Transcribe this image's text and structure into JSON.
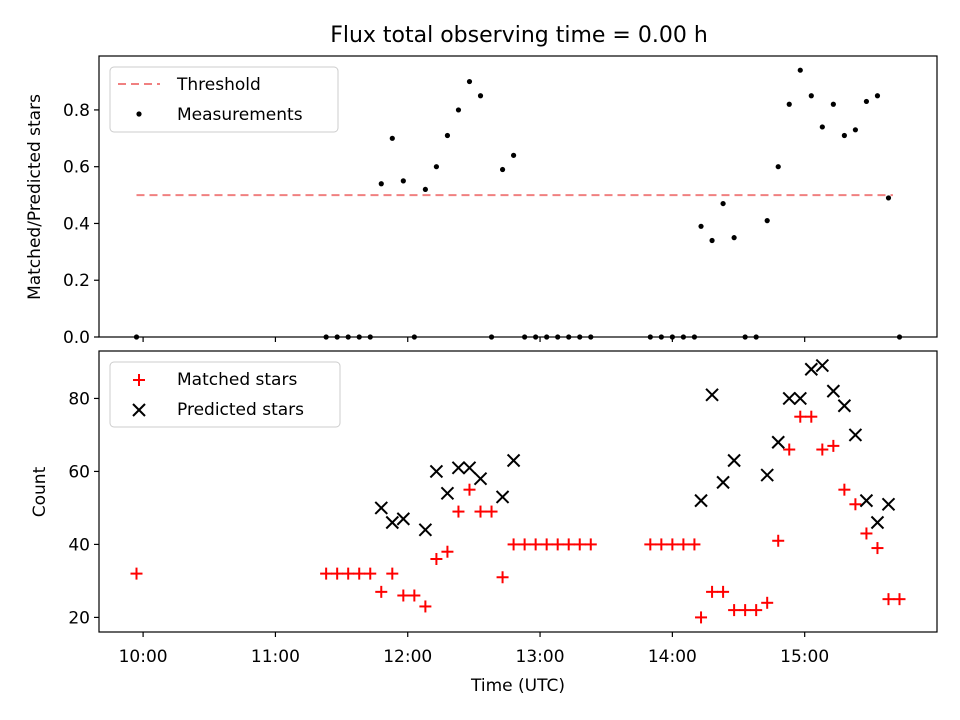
{
  "figure": {
    "title": "Flux total observing time = 0.00 h",
    "xlabel": "Time (UTC)",
    "xticks": [
      "10:00",
      "11:00",
      "12:00",
      "13:00",
      "14:00",
      "15:00"
    ]
  },
  "chart_data": [
    {
      "type": "scatter",
      "title": "Flux total observing time = 0.00 h",
      "xlabel": "",
      "ylabel": "Matched/Predicted stars",
      "xlim": [
        "09:40",
        "16:00"
      ],
      "ylim": [
        0,
        0.99
      ],
      "yticks": [
        0.0,
        0.2,
        0.4,
        0.6,
        0.8
      ],
      "grid": false,
      "legend": "top-left",
      "threshold": {
        "name": "Threshold",
        "y": 0.5,
        "x": [
          "09:57",
          "15:40"
        ],
        "color": "#f08080",
        "style": "dashed"
      },
      "series": [
        {
          "name": "Measurements",
          "color": "#000000",
          "marker": "dot",
          "points": [
            [
              "09:57",
              0.0
            ],
            [
              "11:23",
              0.0
            ],
            [
              "11:28",
              0.0
            ],
            [
              "11:33",
              0.0
            ],
            [
              "11:38",
              0.0
            ],
            [
              "11:43",
              0.0
            ],
            [
              "11:48",
              0.54
            ],
            [
              "11:53",
              0.7
            ],
            [
              "11:58",
              0.55
            ],
            [
              "12:03",
              0.0
            ],
            [
              "12:08",
              0.52
            ],
            [
              "12:13",
              0.6
            ],
            [
              "12:18",
              0.71
            ],
            [
              "12:23",
              0.8
            ],
            [
              "12:28",
              0.9
            ],
            [
              "12:33",
              0.85
            ],
            [
              "12:38",
              0.0
            ],
            [
              "12:43",
              0.59
            ],
            [
              "12:48",
              0.64
            ],
            [
              "12:53",
              0.0
            ],
            [
              "12:58",
              0.0
            ],
            [
              "13:03",
              0.0
            ],
            [
              "13:08",
              0.0
            ],
            [
              "13:13",
              0.0
            ],
            [
              "13:18",
              0.0
            ],
            [
              "13:23",
              0.0
            ],
            [
              "13:50",
              0.0
            ],
            [
              "13:55",
              0.0
            ],
            [
              "14:00",
              0.0
            ],
            [
              "14:05",
              0.0
            ],
            [
              "14:10",
              0.0
            ],
            [
              "14:13",
              0.39
            ],
            [
              "14:18",
              0.34
            ],
            [
              "14:23",
              0.47
            ],
            [
              "14:28",
              0.35
            ],
            [
              "14:33",
              0.0
            ],
            [
              "14:38",
              0.0
            ],
            [
              "14:43",
              0.41
            ],
            [
              "14:48",
              0.6
            ],
            [
              "14:53",
              0.82
            ],
            [
              "14:58",
              0.94
            ],
            [
              "15:03",
              0.85
            ],
            [
              "15:08",
              0.74
            ],
            [
              "15:13",
              0.82
            ],
            [
              "15:18",
              0.71
            ],
            [
              "15:23",
              0.73
            ],
            [
              "15:28",
              0.83
            ],
            [
              "15:33",
              0.85
            ],
            [
              "15:38",
              0.49
            ],
            [
              "15:43",
              0.0
            ]
          ]
        }
      ]
    },
    {
      "type": "scatter",
      "title": "",
      "xlabel": "Time (UTC)",
      "ylabel": "Count",
      "xlim": [
        "09:40",
        "16:00"
      ],
      "ylim": [
        16,
        93
      ],
      "yticks": [
        20,
        40,
        60,
        80
      ],
      "grid": false,
      "legend": "top-left",
      "series": [
        {
          "name": "Matched stars",
          "color": "#ff0000",
          "marker": "plus",
          "points": [
            [
              "09:57",
              32
            ],
            [
              "11:23",
              32
            ],
            [
              "11:28",
              32
            ],
            [
              "11:33",
              32
            ],
            [
              "11:38",
              32
            ],
            [
              "11:43",
              32
            ],
            [
              "11:48",
              27
            ],
            [
              "11:53",
              32
            ],
            [
              "11:58",
              26
            ],
            [
              "12:03",
              26
            ],
            [
              "12:08",
              23
            ],
            [
              "12:13",
              36
            ],
            [
              "12:18",
              38
            ],
            [
              "12:23",
              49
            ],
            [
              "12:28",
              55
            ],
            [
              "12:33",
              49
            ],
            [
              "12:38",
              49
            ],
            [
              "12:43",
              31
            ],
            [
              "12:48",
              40
            ],
            [
              "12:53",
              40
            ],
            [
              "12:58",
              40
            ],
            [
              "13:03",
              40
            ],
            [
              "13:08",
              40
            ],
            [
              "13:13",
              40
            ],
            [
              "13:18",
              40
            ],
            [
              "13:23",
              40
            ],
            [
              "13:50",
              40
            ],
            [
              "13:55",
              40
            ],
            [
              "14:00",
              40
            ],
            [
              "14:05",
              40
            ],
            [
              "14:10",
              40
            ],
            [
              "14:13",
              20
            ],
            [
              "14:18",
              27
            ],
            [
              "14:23",
              27
            ],
            [
              "14:28",
              22
            ],
            [
              "14:33",
              22
            ],
            [
              "14:38",
              22
            ],
            [
              "14:43",
              24
            ],
            [
              "14:48",
              41
            ],
            [
              "14:53",
              66
            ],
            [
              "14:58",
              75
            ],
            [
              "15:03",
              75
            ],
            [
              "15:08",
              66
            ],
            [
              "15:13",
              67
            ],
            [
              "15:18",
              55
            ],
            [
              "15:23",
              51
            ],
            [
              "15:28",
              43
            ],
            [
              "15:33",
              39
            ],
            [
              "15:38",
              25
            ],
            [
              "15:43",
              25
            ]
          ]
        },
        {
          "name": "Predicted stars",
          "color": "#000000",
          "marker": "x",
          "points": [
            [
              "11:48",
              50
            ],
            [
              "11:53",
              46
            ],
            [
              "11:58",
              47
            ],
            [
              "12:08",
              44
            ],
            [
              "12:13",
              60
            ],
            [
              "12:18",
              54
            ],
            [
              "12:23",
              61
            ],
            [
              "12:28",
              61
            ],
            [
              "12:33",
              58
            ],
            [
              "12:43",
              53
            ],
            [
              "12:48",
              63
            ],
            [
              "14:13",
              52
            ],
            [
              "14:18",
              81
            ],
            [
              "14:23",
              57
            ],
            [
              "14:28",
              63
            ],
            [
              "14:43",
              59
            ],
            [
              "14:48",
              68
            ],
            [
              "14:53",
              80
            ],
            [
              "14:58",
              80
            ],
            [
              "15:03",
              88
            ],
            [
              "15:08",
              89
            ],
            [
              "15:13",
              82
            ],
            [
              "15:18",
              78
            ],
            [
              "15:23",
              70
            ],
            [
              "15:28",
              52
            ],
            [
              "15:33",
              46
            ],
            [
              "15:38",
              51
            ]
          ]
        }
      ]
    }
  ]
}
